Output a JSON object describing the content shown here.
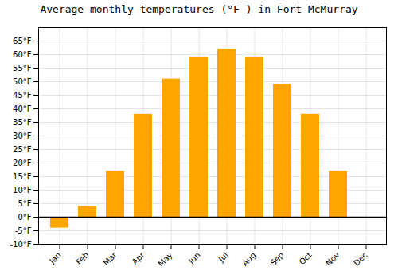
{
  "chart_data": {
    "type": "bar",
    "title": "Average monthly temperatures (°F ) in Fort McMurray",
    "categories": [
      "Jan",
      "Feb",
      "Mar",
      "Apr",
      "May",
      "Jun",
      "Jul",
      "Aug",
      "Sep",
      "Oct",
      "Nov",
      "Dec"
    ],
    "values": [
      -4,
      4,
      17,
      38,
      51,
      59,
      62,
      59,
      49,
      38,
      17,
      0
    ],
    "color": "#FFA500",
    "ylim": [
      -10,
      70
    ],
    "yticks": [
      {
        "value": -10,
        "label": "-10°F"
      },
      {
        "value": -5,
        "label": "-5°F"
      },
      {
        "value": 0,
        "label": "0°F"
      },
      {
        "value": 5,
        "label": "5°F"
      },
      {
        "value": 10,
        "label": "10°F"
      },
      {
        "value": 15,
        "label": "15°F"
      },
      {
        "value": 20,
        "label": "20°F"
      },
      {
        "value": 25,
        "label": "25°F"
      },
      {
        "value": 30,
        "label": "30°F"
      },
      {
        "value": 35,
        "label": "35°F"
      },
      {
        "value": 40,
        "label": "40°F"
      },
      {
        "value": 45,
        "label": "45°F"
      },
      {
        "value": 50,
        "label": "50°F"
      },
      {
        "value": 55,
        "label": "55°F"
      },
      {
        "value": 60,
        "label": "60°F"
      },
      {
        "value": 65,
        "label": "65°F"
      }
    ],
    "grid": true
  }
}
